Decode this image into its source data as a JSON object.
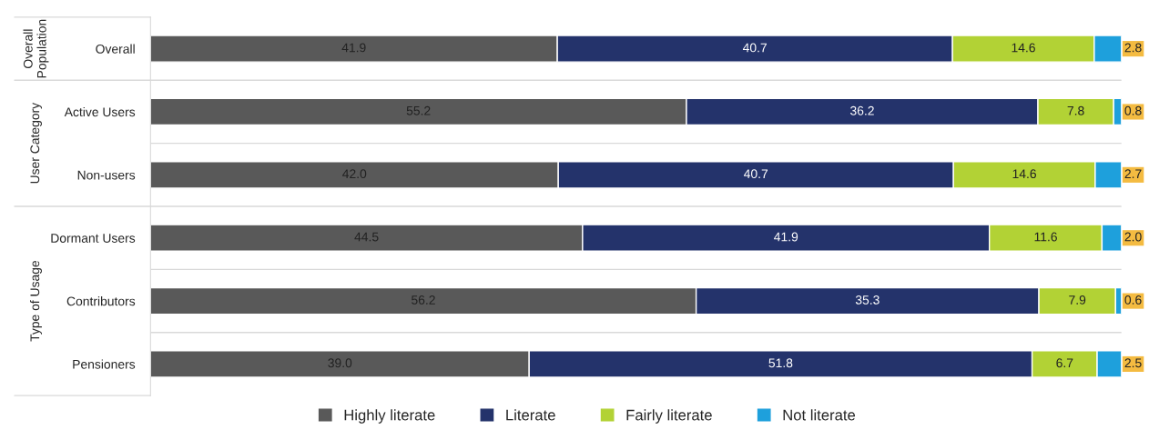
{
  "chart_data": {
    "type": "bar",
    "orientation": "horizontal",
    "stacked": true,
    "legend": "bottom",
    "categories": [
      "Overall",
      "Active Users",
      "Non-users",
      "Dormant Users",
      "Contributors",
      "Pensioners"
    ],
    "annotations": [
      "Overall Population",
      "User Category",
      "Type of Usage"
    ],
    "series": [
      {
        "name": "Highly literate",
        "color": "#595959",
        "values": [
          41.9,
          55.2,
          42.0,
          44.5,
          56.2,
          39.0
        ],
        "value_labels": [
          "41.9",
          "55.2",
          "42.0",
          "44.5",
          "56.2",
          "39.0"
        ]
      },
      {
        "name": "Literate",
        "color": "#24336b",
        "values": [
          40.7,
          36.2,
          40.7,
          41.9,
          35.3,
          51.8
        ],
        "value_labels": [
          "40.7",
          "36.2",
          "40.7",
          "41.9",
          "35.3",
          "51.8"
        ]
      },
      {
        "name": "Fairly literate",
        "color": "#b2d235",
        "values": [
          14.6,
          7.8,
          14.6,
          11.6,
          7.9,
          6.7
        ],
        "value_labels": [
          "14.6",
          "7.8",
          "14.6",
          "11.6",
          "7.9",
          "6.7"
        ]
      },
      {
        "name": "Not literate",
        "color": "#1ea0dc",
        "values": [
          2.8,
          0.8,
          2.7,
          2.0,
          0.6,
          2.5
        ],
        "value_labels": [
          "2.8",
          "0.8",
          "2.7",
          "2.0",
          "0.6",
          "2.5"
        ]
      }
    ]
  }
}
